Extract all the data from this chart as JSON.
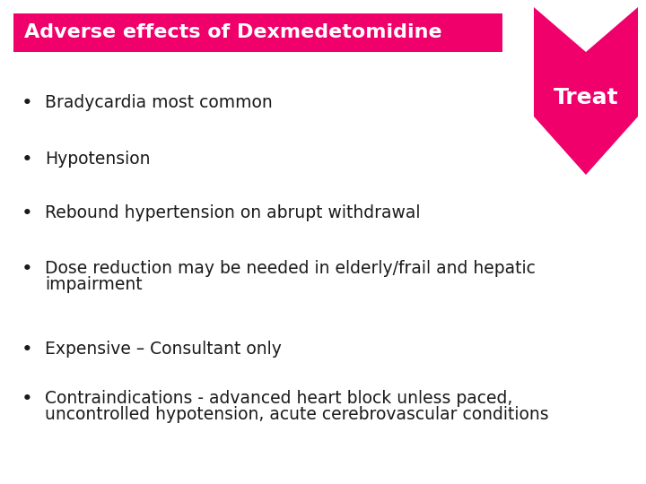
{
  "title": "Adverse effects of Dexmedetomidine",
  "title_bg_color": "#F0006A",
  "title_text_color": "#FFFFFF",
  "title_fontsize": 16,
  "treat_text": "Treat",
  "treat_color": "#F0006A",
  "treat_text_color": "#FFFFFF",
  "treat_fontsize": 18,
  "bullet_color": "#1a1a1a",
  "bullet_dot_color": "#1a1a1a",
  "bullet_fontsize": 13.5,
  "background_color": "#FFFFFF",
  "bullets": [
    "Bradycardia most common",
    "Hypotension",
    "Rebound hypertension on abrupt withdrawal",
    "Dose reduction may be needed in elderly/frail and hepatic impairment",
    "Expensive – Consultant only",
    "Contraindications - advanced heart block unless paced, uncontrolled hypotension, acute cerebrovascular conditions"
  ]
}
